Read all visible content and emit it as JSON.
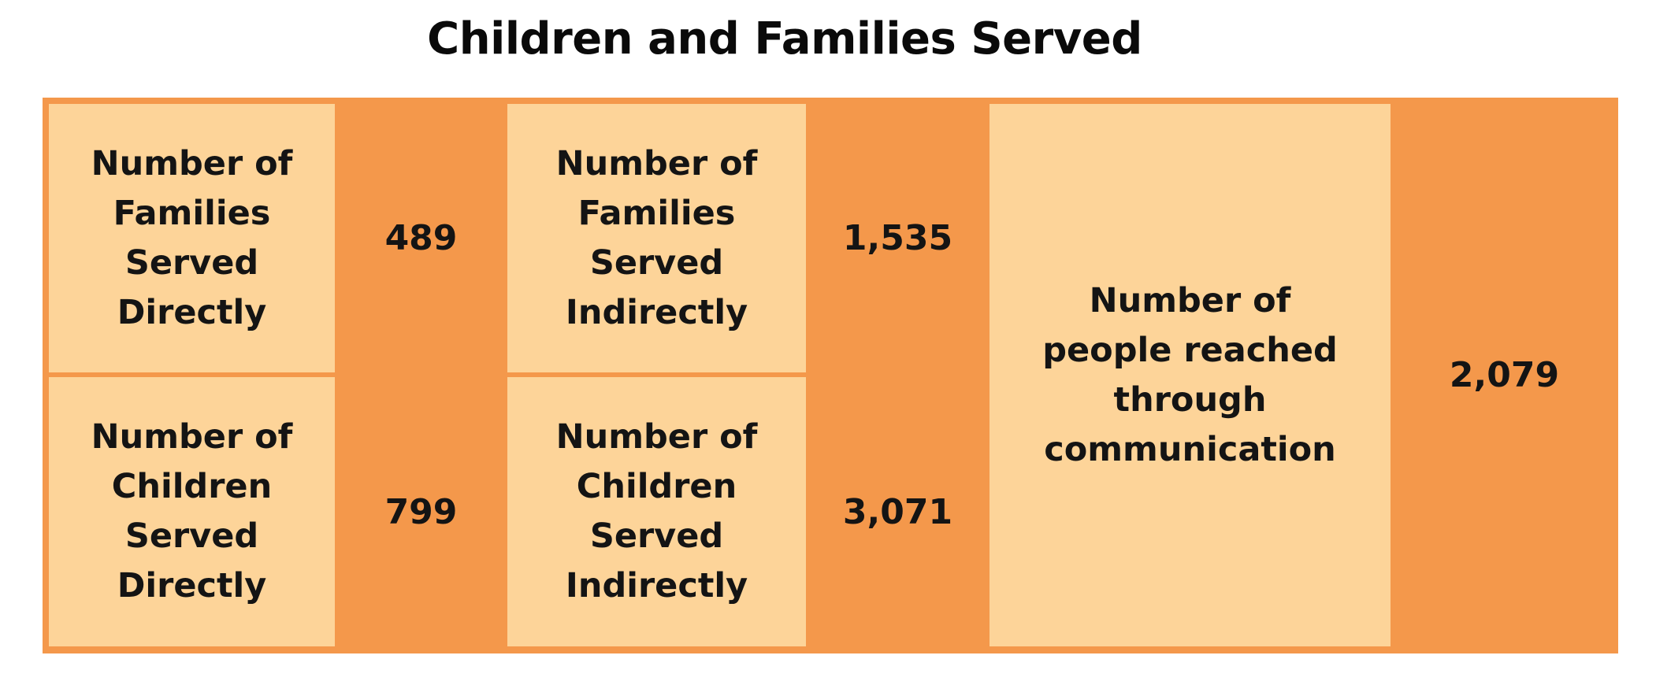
{
  "title": "Children and Families Served",
  "colors": {
    "background": "#ffffff",
    "frame_orange": "#f4984b",
    "label_peach": "#fdd499",
    "text": "#141414"
  },
  "cells": {
    "families_direct": {
      "label": "Number of Families Served Directly",
      "value": "489"
    },
    "children_direct": {
      "label": "Number of Children Served Directly",
      "value": "799"
    },
    "families_indirect": {
      "label": "Number of Families Served Indirectly",
      "value": "1,535"
    },
    "children_indirect": {
      "label": "Number of Children Served Indirectly",
      "value": "3,071"
    },
    "people_communication": {
      "label": "Number of people reached through communication",
      "value": "2,079"
    }
  }
}
